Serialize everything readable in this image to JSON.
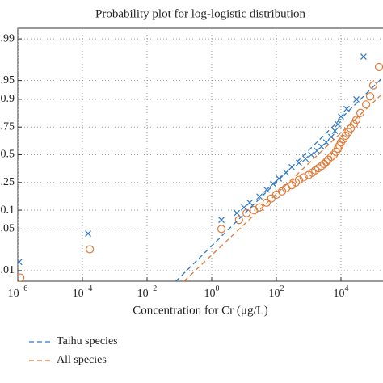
{
  "chart_data": {
    "type": "scatter",
    "title": "Probability plot for log-logistic distribution",
    "x_label": "Concentration for Cr (μg/L)",
    "x_scale": "log",
    "y_scale": "logit",
    "xlim": [
      1e-06,
      200000
    ],
    "ylim": [
      0.0066,
      0.9934
    ],
    "xticks": [
      {
        "value": 1e-06,
        "label": "10−6"
      },
      {
        "value": 0.0001,
        "label": "10−4"
      },
      {
        "value": 0.01,
        "label": "10−2"
      },
      {
        "value": 1,
        "label": "100"
      },
      {
        "value": 100,
        "label": "102"
      },
      {
        "value": 10000,
        "label": "104"
      }
    ],
    "yticks": [
      0.01,
      0.05,
      0.1,
      0.25,
      0.5,
      0.75,
      0.9,
      0.95,
      0.99
    ],
    "grid": true,
    "legend": "below",
    "series": [
      {
        "marker": "x",
        "color": "#2f78c4",
        "x": [
          1.1e-06,
          0.00015,
          2,
          6,
          10,
          15,
          30,
          50,
          80,
          120,
          200,
          300,
          500,
          800,
          1200,
          1800,
          2500,
          3500,
          5000,
          6500,
          8000,
          10000,
          15000,
          30000,
          50000
        ],
        "values": [
          0.014,
          0.042,
          0.07,
          0.09,
          0.11,
          0.13,
          0.16,
          0.2,
          0.24,
          0.28,
          0.33,
          0.38,
          0.42,
          0.46,
          0.5,
          0.54,
          0.58,
          0.62,
          0.67,
          0.72,
          0.77,
          0.82,
          0.86,
          0.9,
          0.98
        ]
      },
      {
        "marker": "o",
        "color": "#e07b39",
        "x": [
          1.2e-06,
          0.00017,
          2,
          7,
          12,
          20,
          30,
          50,
          70,
          100,
          150,
          200,
          300,
          400,
          500,
          700,
          1000,
          1300,
          1600,
          2000,
          2500,
          3000,
          3500,
          4000,
          5000,
          6000,
          7000,
          8000,
          9000,
          10000,
          12000,
          14000,
          17000,
          20000,
          25000,
          30000,
          40000,
          60000,
          80000,
          100000,
          150000
        ],
        "values": [
          0.0076,
          0.023,
          0.05,
          0.07,
          0.09,
          0.1,
          0.11,
          0.13,
          0.15,
          0.17,
          0.19,
          0.21,
          0.23,
          0.25,
          0.27,
          0.29,
          0.31,
          0.33,
          0.35,
          0.37,
          0.39,
          0.41,
          0.43,
          0.45,
          0.48,
          0.5,
          0.53,
          0.56,
          0.59,
          0.62,
          0.65,
          0.68,
          0.71,
          0.74,
          0.77,
          0.8,
          0.84,
          0.88,
          0.91,
          0.94,
          0.97
        ]
      },
      {
        "name": "Taihu species",
        "style": "dashed",
        "color": "#2f78c4",
        "x": [
          0.078,
          200000
        ],
        "values": [
          0.0066,
          0.956
        ]
      },
      {
        "name": "All species",
        "style": "dashed",
        "color": "#e07b39",
        "x": [
          0.14,
          200000
        ],
        "values": [
          0.0066,
          0.92
        ]
      }
    ]
  }
}
